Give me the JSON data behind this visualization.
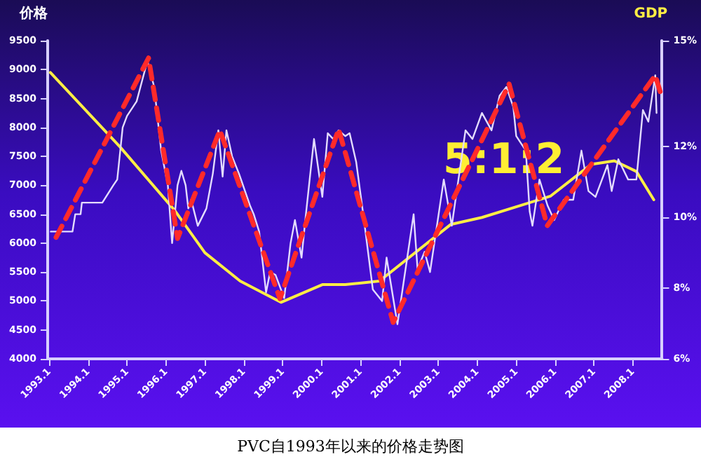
{
  "chart_data": {
    "type": "line",
    "ylabel": "价格",
    "y2label": "GDP",
    "annotations": [
      "5:1:2",
      "PVC自1993年以来的价格走势图"
    ],
    "xlim": [
      "1992-12-17",
      "2008-10-01"
    ],
    "xticks": [
      {
        "value": "1993-01",
        "label": "1993.1"
      },
      {
        "value": "1994-01",
        "label": "1994.1"
      },
      {
        "value": "1995-01",
        "label": "1995.1"
      },
      {
        "value": "1996-01",
        "label": "1996.1"
      },
      {
        "value": "1997-01",
        "label": "1997.1"
      },
      {
        "value": "1998-01",
        "label": "1998.1"
      },
      {
        "value": "1999-01",
        "label": "1999.1"
      },
      {
        "value": "2000-01",
        "label": "2000.1"
      },
      {
        "value": "2001-01",
        "label": "2001.1"
      },
      {
        "value": "2002-01",
        "label": "2002.1"
      },
      {
        "value": "2003-01",
        "label": "2003.1"
      },
      {
        "value": "2004-01",
        "label": "2004.1"
      },
      {
        "value": "2005-01",
        "label": "2005.1"
      },
      {
        "value": "2006-01",
        "label": "2006.1"
      },
      {
        "value": "2007-01",
        "label": "2007.1"
      },
      {
        "value": "2008-01",
        "label": "2008.1"
      }
    ],
    "ylim": [
      4000,
      9500
    ],
    "yticks": [
      4000,
      4500,
      5000,
      5500,
      6000,
      6500,
      7000,
      7500,
      8000,
      8500,
      9000,
      9500
    ],
    "y2lim": [
      6,
      15
    ],
    "y2ticks": [
      {
        "value": 6,
        "label": "6%"
      },
      {
        "value": 8,
        "label": "8%"
      },
      {
        "value": 10,
        "label": "10%"
      },
      {
        "value": 12,
        "label": "12%"
      },
      {
        "value": 15,
        "label": "15%"
      }
    ],
    "grid": false,
    "marker": "none",
    "series": [
      {
        "color": "#ff2a2a",
        "line_style": "dashed",
        "x": [
          "1993-03-06",
          "1995-07-22",
          "1996-04-19",
          "1997-05-21",
          "1998-12-06",
          "2000-06-09",
          "2001-11-03",
          "2004-10-26",
          "2005-10-19",
          "2008-07-29",
          "2008-09-13"
        ],
        "values": [
          6100,
          9200,
          6080,
          7950,
          5040,
          7970,
          4630,
          8750,
          6300,
          8900,
          8620
        ]
      },
      {
        "color": "#e4dcff",
        "line_style": "solid",
        "x": [
          "1993-01-15",
          "1993-08-07",
          "1993-09-02",
          "1993-10-22",
          "1993-11-03",
          "1994-05-14",
          "1994-08-25",
          "1994-10-01",
          "1994-11-21",
          "1995-01-01",
          "1995-04-01",
          "1995-05-07",
          "1995-07-11",
          "1995-09-13",
          "1995-11-17",
          "1996-01-19",
          "1996-02-28",
          "1996-04-19",
          "1996-05-25",
          "1996-07-04",
          "1996-07-29",
          "1996-08-25",
          "1996-10-26",
          "1997-01-15",
          "1997-03-16",
          "1997-05-07",
          "1997-06-16",
          "1997-07-22",
          "1997-09-13",
          "1997-11-17",
          "1998-02-28",
          "1998-04-04",
          "1998-05-25",
          "1998-07-29",
          "1998-09-05",
          "1998-10-26",
          "1999-01-15",
          "1999-03-16",
          "1999-04-26",
          "1999-06-27",
          "1999-08-07",
          "1999-10-22",
          "2000-01-08",
          "2000-02-28",
          "2000-04-19",
          "2000-06-09",
          "2000-08-10",
          "2000-09-20",
          "2000-11-21",
          "2001-01-26",
          "2001-04-26",
          "2001-07-22",
          "2001-09-02",
          "2001-12-13",
          "2002-05-14",
          "2002-06-20",
          "2002-08-25",
          "2002-10-15",
          "2003-02-21",
          "2003-05-07",
          "2003-09-13",
          "2003-11-17",
          "2004-02-14",
          "2004-05-14",
          "2004-07-29",
          "2004-10-01",
          "2004-12-05",
          "2005-01-01",
          "2005-04-01",
          "2005-05-07",
          "2005-06-02",
          "2005-08-07",
          "2005-10-22",
          "2005-12-23",
          "2006-03-23",
          "2006-06-20",
          "2006-09-05",
          "2006-11-10",
          "2007-01-15",
          "2007-05-07",
          "2007-06-16",
          "2007-08-17",
          "2007-11-17",
          "2008-02-03",
          "2008-04-04",
          "2008-05-25",
          "2008-07-29",
          "2008-08-10"
        ],
        "values": [
          6200,
          6200,
          6500,
          6500,
          6700,
          6700,
          7000,
          7100,
          8000,
          8200,
          8450,
          8700,
          9150,
          8700,
          7600,
          7000,
          6000,
          7000,
          7250,
          7000,
          6600,
          6750,
          6300,
          6600,
          7200,
          7950,
          7150,
          7950,
          7500,
          7200,
          6650,
          6500,
          6200,
          5150,
          5500,
          5450,
          5050,
          6000,
          6400,
          5750,
          6500,
          7800,
          6800,
          7900,
          7800,
          7950,
          7850,
          7900,
          7400,
          6500,
          5200,
          5000,
          5750,
          4600,
          6500,
          5550,
          5850,
          5500,
          7100,
          6300,
          7950,
          7800,
          8250,
          7950,
          8550,
          8700,
          8350,
          7850,
          7600,
          6550,
          6300,
          7100,
          6650,
          6400,
          6750,
          6750,
          7600,
          6900,
          6800,
          7350,
          6900,
          7450,
          7100,
          7100,
          8300,
          8100,
          8900,
          8250
        ]
      },
      {
        "color": "#ffee44",
        "line_style": "solid",
        "axis": "y2",
        "x": [
          "1993-01-11",
          "1994-10-26",
          "1996-03-23",
          "1997-01-01",
          "1997-11-28",
          "1998-12-16",
          "2000-01-08",
          "2000-08-10",
          "2001-06-27",
          "2003-04-26",
          "2004-02-14",
          "2005-11-17",
          "2006-12-05",
          "2007-07-11",
          "2008-02-03",
          "2008-07-15"
        ],
        "values": [
          14.1,
          12.0,
          10.2,
          9.0,
          8.2,
          7.6,
          8.1,
          8.1,
          8.2,
          9.8,
          10.0,
          10.6,
          11.5,
          11.6,
          11.3,
          10.5
        ]
      }
    ]
  }
}
